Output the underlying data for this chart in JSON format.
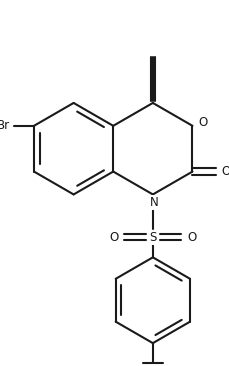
{
  "bg_color": "#ffffff",
  "line_color": "#1a1a1a",
  "lw": 1.5,
  "figsize": [
    2.3,
    3.66
  ],
  "dpi": 100,
  "xlim": [
    -1.8,
    2.0
  ],
  "ylim": [
    -3.8,
    2.6
  ]
}
